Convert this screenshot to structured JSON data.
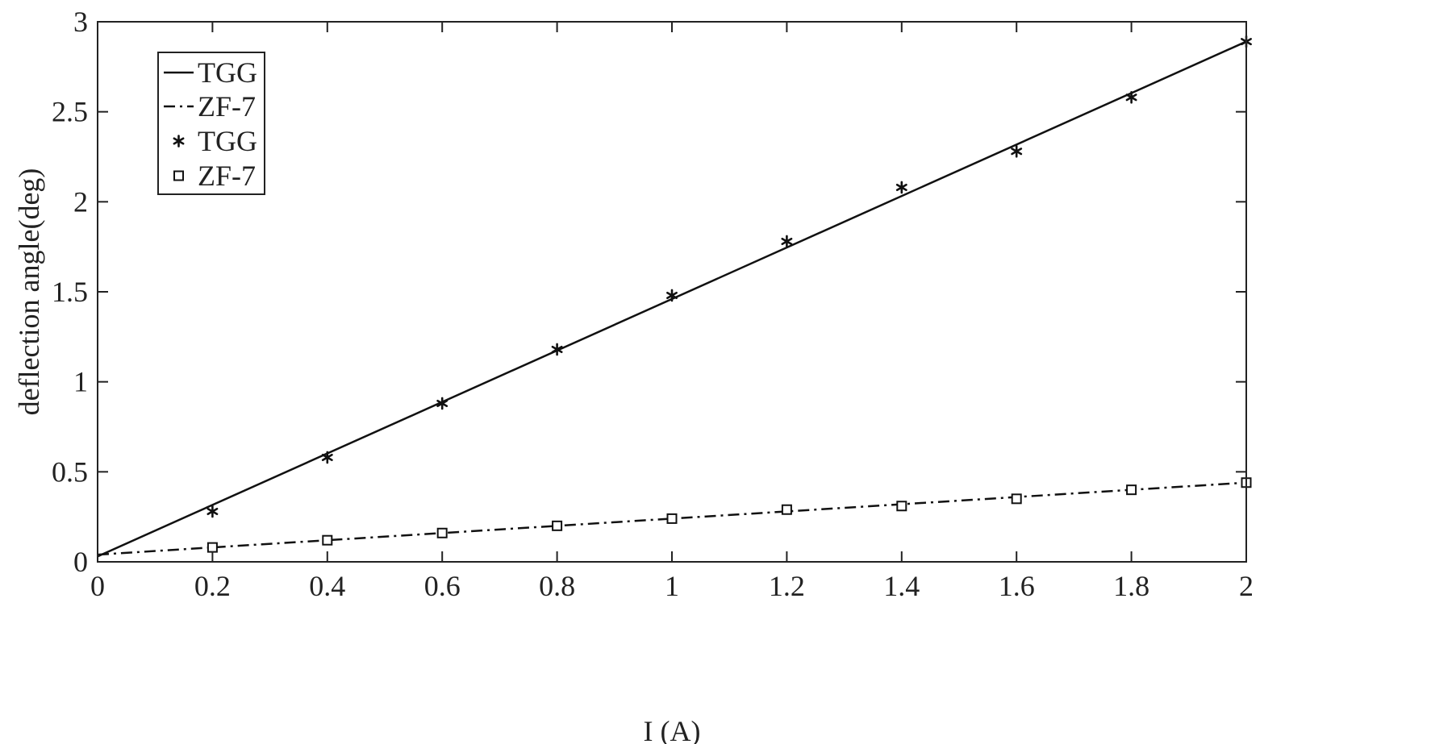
{
  "chart_data": {
    "type": "line",
    "title": "",
    "xlabel": "I (A)",
    "ylabel": "deflection angle(deg)",
    "xlim": [
      0,
      2
    ],
    "ylim": [
      0,
      3
    ],
    "xticks": [
      0,
      0.2,
      0.4,
      0.6,
      0.8,
      1,
      1.2,
      1.4,
      1.6,
      1.8,
      2
    ],
    "xtick_labels": [
      "0",
      "0.2",
      "0.4",
      "0.6",
      "0.8",
      "1",
      "1.2",
      "1.4",
      "1.6",
      "1.8",
      "2"
    ],
    "yticks": [
      0,
      0.5,
      1,
      1.5,
      2,
      2.5,
      3
    ],
    "ytick_labels": [
      "0",
      "0.5",
      "1",
      "1.5",
      "2",
      "2.5",
      "3"
    ],
    "grid": false,
    "legend_position": "top-left",
    "series": [
      {
        "name": "TGG",
        "kind": "line",
        "style": "solid",
        "x": [
          0,
          2
        ],
        "y": [
          0.03,
          2.89
        ]
      },
      {
        "name": "ZF-7",
        "kind": "line",
        "style": "dashdot",
        "x": [
          0,
          2
        ],
        "y": [
          0.04,
          0.44
        ]
      },
      {
        "name": "TGG",
        "kind": "scatter",
        "marker": "asterisk",
        "x": [
          0.2,
          0.4,
          0.6,
          0.8,
          1.0,
          1.2,
          1.4,
          1.6,
          1.8,
          2.0
        ],
        "y": [
          0.28,
          0.58,
          0.88,
          1.18,
          1.48,
          1.78,
          2.08,
          2.28,
          2.58,
          2.89
        ]
      },
      {
        "name": "ZF-7",
        "kind": "scatter",
        "marker": "square",
        "x": [
          0.2,
          0.4,
          0.6,
          0.8,
          1.0,
          1.2,
          1.4,
          1.6,
          1.8,
          2.0
        ],
        "y": [
          0.08,
          0.12,
          0.16,
          0.2,
          0.24,
          0.29,
          0.31,
          0.35,
          0.4,
          0.44
        ]
      }
    ]
  }
}
